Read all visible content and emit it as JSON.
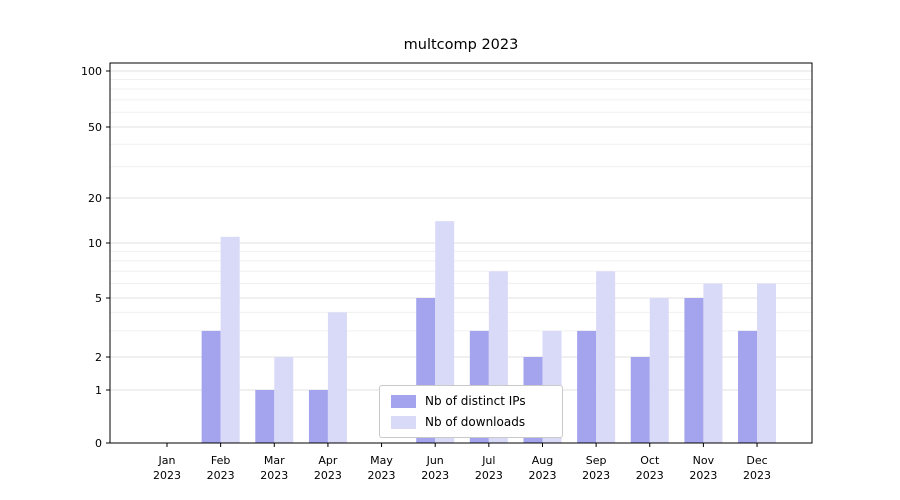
{
  "title": "multcomp 2023",
  "chart_data": {
    "type": "bar",
    "title": "multcomp 2023",
    "categories": [
      "Jan 2023",
      "Feb 2023",
      "Mar 2023",
      "Apr 2023",
      "May 2023",
      "Jun 2023",
      "Jul 2023",
      "Aug 2023",
      "Sep 2023",
      "Oct 2023",
      "Nov 2023",
      "Dec 2023"
    ],
    "series": [
      {
        "name": "Nb of distinct IPs",
        "color": "#a4a4ee",
        "values": [
          0,
          3,
          1,
          1,
          0,
          5,
          3,
          2,
          3,
          2,
          5,
          3
        ]
      },
      {
        "name": "Nb of downloads",
        "color": "#d9d9f8",
        "values": [
          0,
          11,
          2,
          4,
          0,
          14,
          7,
          3,
          7,
          5,
          6,
          6
        ]
      }
    ],
    "yscale": "symlog",
    "yticks": [
      0,
      1,
      2,
      5,
      10,
      20,
      50,
      100
    ],
    "ylim": [
      0,
      120
    ],
    "grid": true,
    "legend_position": "lower center",
    "xlabel": "",
    "ylabel": ""
  }
}
